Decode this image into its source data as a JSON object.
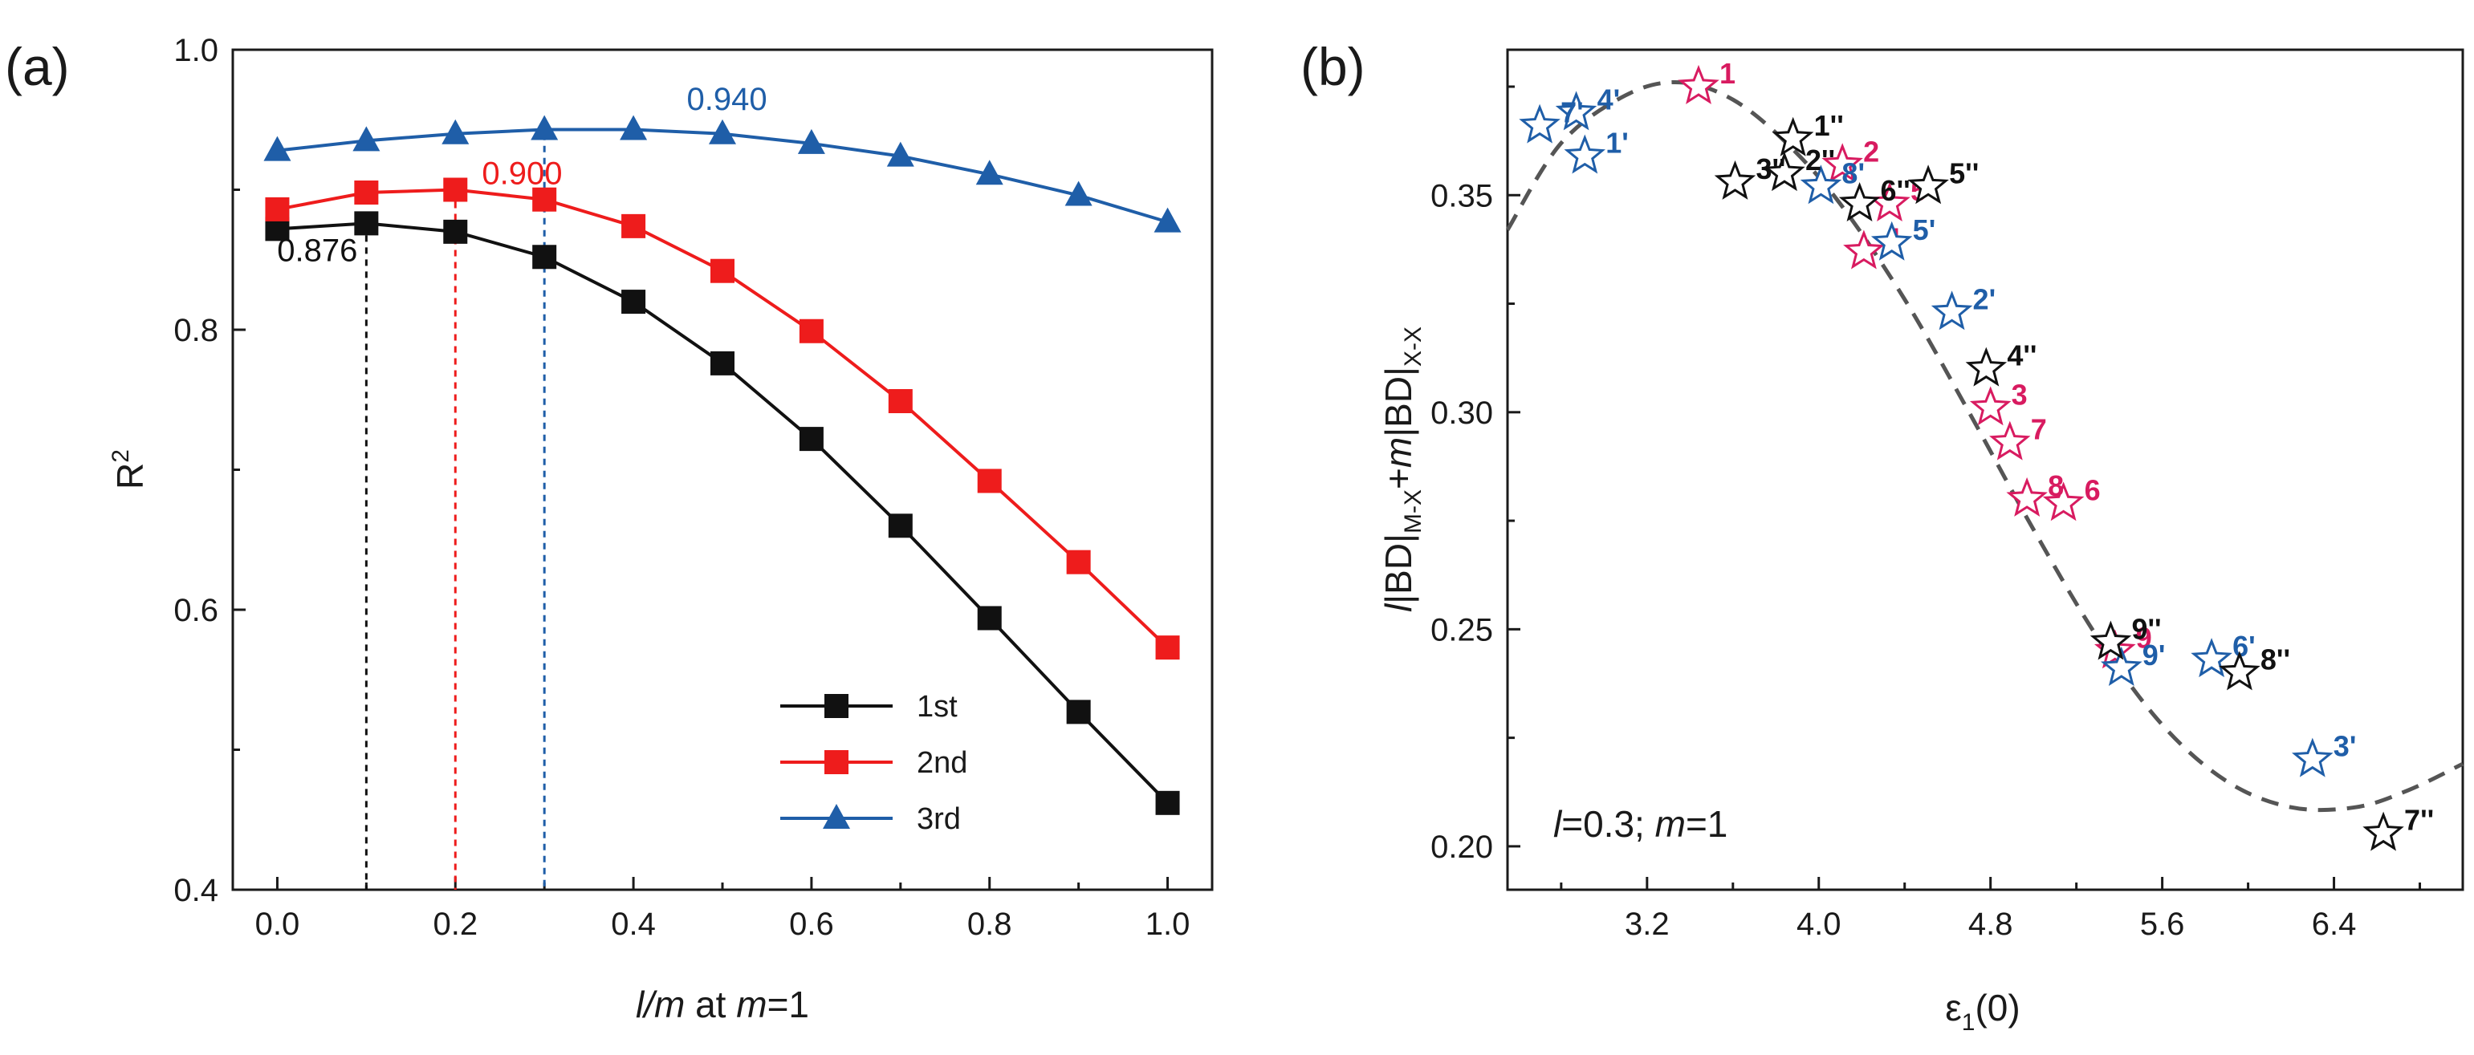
{
  "colors": {
    "black": "#111111",
    "red": "#ee1c1c",
    "blue": "#1f5ea8",
    "pink": "#d81b60",
    "dash": "#555555"
  },
  "chart_data": [
    {
      "panel": "(a)",
      "type": "line",
      "ylabel": "R",
      "ylabel_sup": "2",
      "xlabel_parts": [
        "l/m",
        " at ",
        "m",
        "=1"
      ],
      "xlim": [
        -0.05,
        1.05
      ],
      "ylim": [
        0.4,
        1.0
      ],
      "x_ticks": [
        "0.0",
        "0.2",
        "0.4",
        "0.6",
        "0.8",
        "1.0"
      ],
      "x_tick_values": [
        0.0,
        0.2,
        0.4,
        0.6,
        0.8,
        1.0
      ],
      "y_ticks": [
        "0.4",
        "0.6",
        "0.8",
        "1.0"
      ],
      "y_tick_values": [
        0.4,
        0.6,
        0.8,
        1.0
      ],
      "x": [
        0.0,
        0.1,
        0.2,
        0.3,
        0.4,
        0.5,
        0.6,
        0.7,
        0.8,
        0.9,
        1.0
      ],
      "series": [
        {
          "name": "1st",
          "color": "#111111",
          "marker": "square",
          "values": [
            0.872,
            0.876,
            0.87,
            0.852,
            0.82,
            0.776,
            0.722,
            0.66,
            0.594,
            0.527,
            0.462
          ]
        },
        {
          "name": "2nd",
          "color": "#ee1c1c",
          "marker": "square",
          "values": [
            0.886,
            0.898,
            0.9,
            0.893,
            0.874,
            0.842,
            0.799,
            0.749,
            0.692,
            0.634,
            0.573
          ]
        },
        {
          "name": "3rd",
          "color": "#1f5ea8",
          "marker": "triangle",
          "values": [
            0.928,
            0.935,
            0.94,
            0.943,
            0.943,
            0.94,
            0.933,
            0.924,
            0.911,
            0.896,
            0.877
          ]
        }
      ],
      "vlines": [
        {
          "x": 0.1,
          "y": 0.876,
          "color": "#111111"
        },
        {
          "x": 0.2,
          "y": 0.9,
          "color": "#ee1c1c"
        },
        {
          "x": 0.3,
          "y": 0.94,
          "color": "#1f5ea8"
        }
      ],
      "annotations": [
        {
          "text": "0.876",
          "x": 0.045,
          "y": 0.857,
          "color": "#111111"
        },
        {
          "text": "0.900",
          "x": 0.275,
          "y": 0.912,
          "color": "#ee1c1c"
        },
        {
          "text": "0.940",
          "x": 0.505,
          "y": 0.965,
          "color": "#1f5ea8"
        }
      ],
      "legend_position": "bottom-right"
    },
    {
      "panel": "(b)",
      "type": "scatter",
      "ylabel_parts": [
        "l",
        "|BD|",
        "M-X",
        "+",
        "m",
        "|BD|",
        "X-X"
      ],
      "xlabel_parts": [
        "ε",
        "1",
        "(0)"
      ],
      "xlim": [
        2.55,
        7.0
      ],
      "ylim": [
        0.19,
        0.3835
      ],
      "x_ticks": [
        "3.2",
        "4.0",
        "4.8",
        "5.6",
        "6.4"
      ],
      "x_tick_values": [
        3.2,
        4.0,
        4.8,
        5.6,
        6.4
      ],
      "y_ticks": [
        "0.20",
        "0.25",
        "0.30",
        "0.35"
      ],
      "y_tick_values": [
        0.2,
        0.25,
        0.3,
        0.35
      ],
      "inset_text_parts": [
        "l",
        "=0.3; ",
        "m",
        "=1"
      ],
      "fit_curve": {
        "style": "dashed",
        "x": [
          2.55,
          2.8,
          3.1,
          3.35,
          3.6,
          3.85,
          4.1,
          4.4,
          4.7,
          5.0,
          5.3,
          5.6,
          5.9,
          6.2,
          6.5,
          6.75,
          7.0
        ],
        "y": [
          0.342,
          0.362,
          0.373,
          0.376,
          0.372,
          0.362,
          0.348,
          0.326,
          0.3,
          0.273,
          0.248,
          0.228,
          0.215,
          0.209,
          0.209,
          0.213,
          0.219
        ]
      },
      "points": [
        {
          "label": "1",
          "x": 3.44,
          "y": 0.375,
          "color": "#d81b60"
        },
        {
          "label": "2",
          "x": 4.11,
          "y": 0.357,
          "color": "#d81b60"
        },
        {
          "label": "3",
          "x": 4.8,
          "y": 0.301,
          "color": "#d81b60"
        },
        {
          "label": "4",
          "x": 4.21,
          "y": 0.337,
          "color": "#d81b60"
        },
        {
          "label": "5",
          "x": 4.33,
          "y": 0.348,
          "color": "#d81b60"
        },
        {
          "label": "6",
          "x": 5.14,
          "y": 0.279,
          "color": "#d81b60"
        },
        {
          "label": "7",
          "x": 4.89,
          "y": 0.293,
          "color": "#d81b60"
        },
        {
          "label": "8",
          "x": 4.97,
          "y": 0.28,
          "color": "#d81b60"
        },
        {
          "label": "9",
          "x": 5.38,
          "y": 0.245,
          "color": "#d81b60"
        },
        {
          "label": "1'",
          "x": 2.91,
          "y": 0.359,
          "color": "#1f5ea8"
        },
        {
          "label": "2'",
          "x": 4.62,
          "y": 0.323,
          "color": "#1f5ea8"
        },
        {
          "label": "3'",
          "x": 6.3,
          "y": 0.22,
          "color": "#1f5ea8"
        },
        {
          "label": "4'",
          "x": 2.87,
          "y": 0.369,
          "color": "#1f5ea8"
        },
        {
          "label": "5'",
          "x": 4.34,
          "y": 0.339,
          "color": "#1f5ea8"
        },
        {
          "label": "6'",
          "x": 5.83,
          "y": 0.243,
          "color": "#1f5ea8"
        },
        {
          "label": "7'",
          "x": 2.7,
          "y": 0.366,
          "color": "#1f5ea8"
        },
        {
          "label": "8'",
          "x": 4.01,
          "y": 0.352,
          "color": "#1f5ea8"
        },
        {
          "label": "9'",
          "x": 5.41,
          "y": 0.241,
          "color": "#1f5ea8"
        },
        {
          "label": "1''",
          "x": 3.88,
          "y": 0.363,
          "color": "#111111"
        },
        {
          "label": "2''",
          "x": 3.84,
          "y": 0.355,
          "color": "#111111"
        },
        {
          "label": "3''",
          "x": 3.61,
          "y": 0.353,
          "color": "#111111"
        },
        {
          "label": "4''",
          "x": 4.78,
          "y": 0.31,
          "color": "#111111"
        },
        {
          "label": "5''",
          "x": 4.51,
          "y": 0.352,
          "color": "#111111"
        },
        {
          "label": "6''",
          "x": 4.19,
          "y": 0.348,
          "color": "#111111"
        },
        {
          "label": "7''",
          "x": 6.63,
          "y": 0.203,
          "color": "#111111"
        },
        {
          "label": "8''",
          "x": 5.96,
          "y": 0.24,
          "color": "#111111"
        },
        {
          "label": "9''",
          "x": 5.36,
          "y": 0.247,
          "color": "#111111"
        }
      ]
    }
  ]
}
